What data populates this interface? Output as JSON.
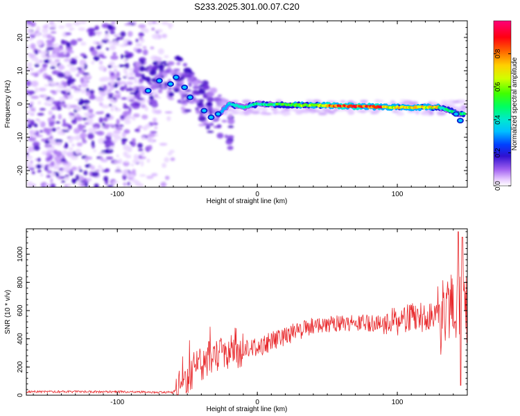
{
  "title": "S233.2025.301.00.07.C20",
  "colors": {
    "snr_line": "#e8282b",
    "axis": "#000000"
  },
  "chart_data": [
    {
      "type": "heatmap",
      "name": "spectrogram",
      "xlabel": "Height of straight line (km)",
      "ylabel": "Frequency (Hz)",
      "xlim": [
        -165,
        150
      ],
      "ylim": [
        -25,
        25
      ],
      "xticks": [
        -100,
        0,
        100
      ],
      "yticks": [
        -20,
        -10,
        0,
        10,
        20
      ],
      "colorbar": {
        "label": "Normalized spectral amplitude",
        "range": [
          0,
          1
        ],
        "ticks": [
          "0.0",
          "0.2",
          "0.4",
          "0.6",
          "0.8"
        ]
      },
      "signal_ridge": {
        "description_points": [
          {
            "x": -80,
            "f": 4
          },
          {
            "x": -65,
            "f": 7
          },
          {
            "x": -55,
            "f": 6
          },
          {
            "x": -40,
            "f": -2
          },
          {
            "x": -30,
            "f": -4
          },
          {
            "x": -20,
            "f": 0
          },
          {
            "x": -10,
            "f": -1
          },
          {
            "x": 0,
            "f": 0
          },
          {
            "x": 50,
            "f": -0.5
          },
          {
            "x": 100,
            "f": -1
          },
          {
            "x": 130,
            "f": -1
          },
          {
            "x": 145,
            "f": -3
          }
        ]
      }
    },
    {
      "type": "line",
      "name": "snr",
      "xlabel": "Height of straight line (km)",
      "ylabel": "SNR (10 * v/v)",
      "xlim": [
        -165,
        150
      ],
      "ylim": [
        0,
        1180
      ],
      "xticks": [
        -100,
        0,
        100
      ],
      "yticks": [
        0,
        200,
        400,
        600,
        800,
        1000
      ],
      "envelope": {
        "x": [
          -165,
          -120,
          -80,
          -60,
          -55,
          -45,
          -35,
          -25,
          -15,
          -5,
          5,
          20,
          40,
          60,
          80,
          100,
          120,
          140,
          150
        ],
        "y": [
          25,
          25,
          22,
          20,
          80,
          180,
          260,
          290,
          310,
          330,
          360,
          420,
          490,
          510,
          510,
          530,
          560,
          560,
          540
        ]
      }
    }
  ]
}
